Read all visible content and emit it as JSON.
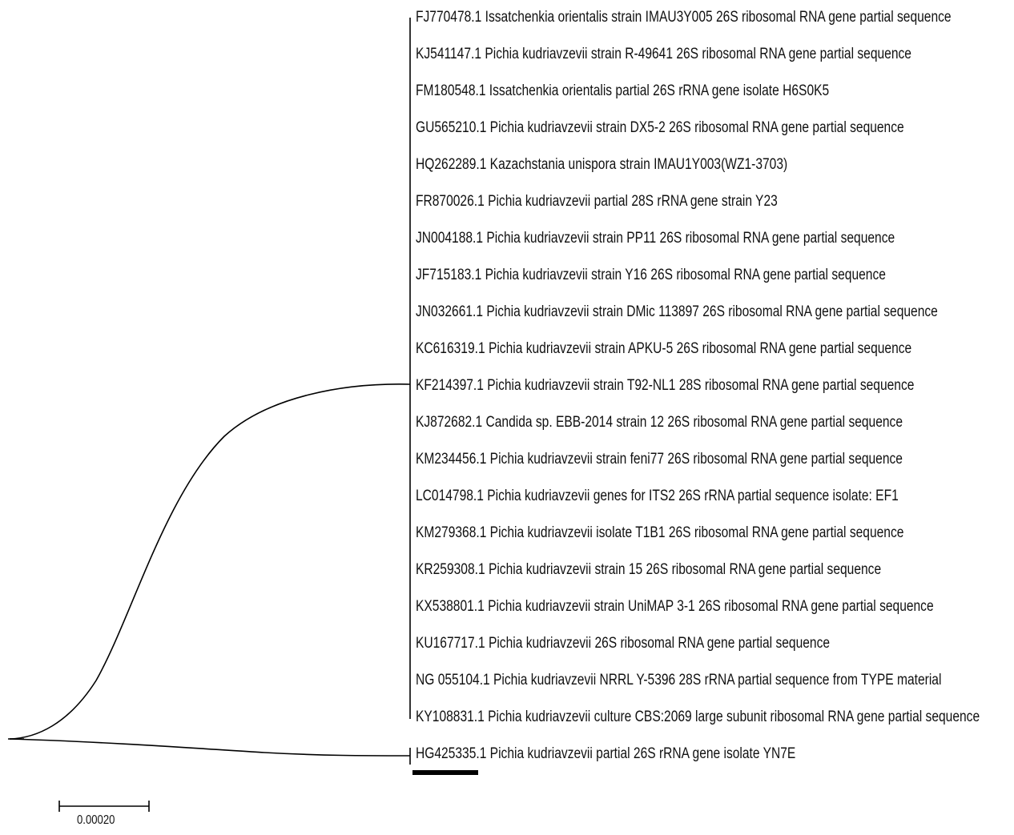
{
  "tree": {
    "taxa": [
      "FJ770478.1 Issatchenkia orientalis strain IMAU3Y005 26S ribosomal RNA gene partial sequence",
      "KJ541147.1 Pichia kudriavzevii strain R-49641 26S ribosomal RNA gene partial sequence",
      "FM180548.1 Issatchenkia orientalis partial 26S rRNA gene isolate H6S0K5",
      "GU565210.1 Pichia kudriavzevii strain DX5-2 26S ribosomal RNA gene partial sequence",
      "HQ262289.1 Kazachstania unispora strain IMAU1Y003(WZ1-3703)",
      "FR870026.1 Pichia kudriavzevii partial 28S rRNA gene strain Y23",
      "JN004188.1 Pichia kudriavzevii strain PP11 26S ribosomal RNA gene partial sequence",
      "JF715183.1 Pichia kudriavzevii strain Y16 26S ribosomal RNA gene partial sequence",
      "JN032661.1 Pichia kudriavzevii strain DMic 113897 26S ribosomal RNA gene partial sequence",
      "KC616319.1 Pichia kudriavzevii strain APKU-5 26S ribosomal RNA gene partial sequence",
      "KF214397.1 Pichia kudriavzevii strain T92-NL1 28S ribosomal RNA gene partial sequence",
      "KJ872682.1 Candida sp. EBB-2014 strain 12 26S ribosomal RNA gene partial sequence",
      "KM234456.1 Pichia kudriavzevii strain feni77 26S ribosomal RNA gene partial sequence",
      "LC014798.1 Pichia kudriavzevii genes for ITS2 26S rRNA partial sequence isolate: EF1",
      "KM279368.1 Pichia kudriavzevii isolate T1B1 26S ribosomal RNA gene partial sequence",
      "KR259308.1 Pichia kudriavzevii strain 15 26S ribosomal RNA gene partial sequence",
      "KX538801.1 Pichia kudriavzevii strain UniMAP 3-1 26S ribosomal RNA gene partial sequence",
      "KU167717.1 Pichia kudriavzevii 26S ribosomal RNA gene partial sequence",
      "NG 055104.1 Pichia kudriavzevii NRRL Y-5396 28S rRNA partial sequence from TYPE material",
      "KY108831.1 Pichia kudriavzevii culture CBS:2069 large subunit ribosomal RNA gene partial sequence",
      "HG425335.1 Pichia kudriavzevii partial 26S rRNA gene isolate YN7E"
    ],
    "highlighted_taxon_index": 20
  },
  "scale_bar": {
    "label": "0.00020"
  },
  "colors": {
    "line": "#000000",
    "text": "#111111",
    "background": "#ffffff"
  }
}
